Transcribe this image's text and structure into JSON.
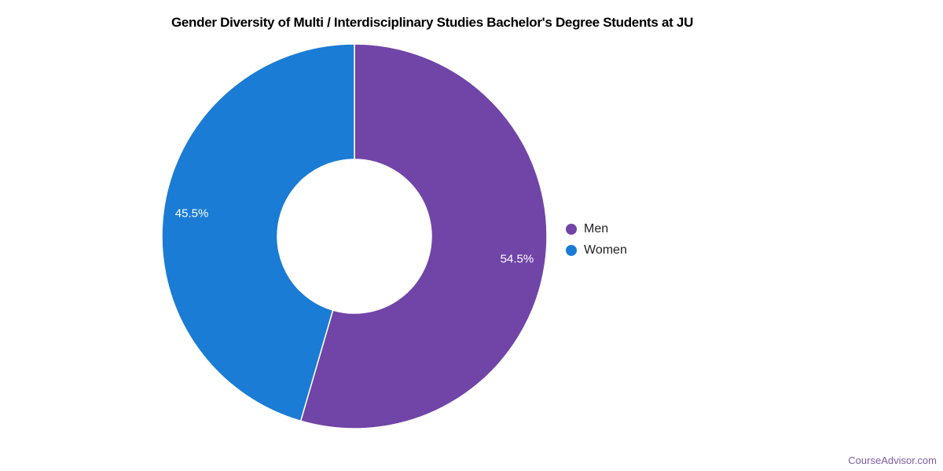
{
  "watermark": "CourseAdvisor.com",
  "chart_data": {
    "type": "pie",
    "subtype": "donut",
    "title": "Gender Diversity of Multi / Interdisciplinary Studies Bachelor's Degree Students at JU",
    "hole_ratio": 0.4,
    "start_angle_deg": 0,
    "direction": "clockwise",
    "legend_position": "right",
    "background_color": "#ffffff",
    "separator_color": "#ffffff",
    "label_text_color": "#ffffff",
    "slices": [
      {
        "name": "Men",
        "value": 54.5,
        "label": "54.5%",
        "color": "#7145A7"
      },
      {
        "name": "Women",
        "value": 45.5,
        "label": "45.5%",
        "color": "#1A7CD4"
      }
    ]
  }
}
